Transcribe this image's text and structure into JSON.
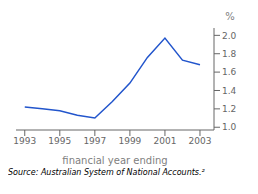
{
  "chart_data": {
    "type": "line",
    "x": [
      1993,
      1994,
      1995,
      1996,
      1997,
      1998,
      1999,
      2000,
      2001,
      2002,
      2003
    ],
    "values": [
      1.22,
      1.2,
      1.18,
      1.13,
      1.1,
      1.28,
      1.48,
      1.76,
      1.97,
      1.73,
      1.68
    ],
    "color": "#2255cc",
    "xlabel": "financial year ending",
    "ylabel": "%",
    "xlim": [
      1992.5,
      2003.8
    ],
    "ylim": [
      0.97,
      2.08
    ],
    "xticks": [
      1993,
      1995,
      1997,
      1999,
      2001,
      2003
    ],
    "yticks": [
      {
        "value": 1.0,
        "label": "1.0"
      },
      1.2,
      1.4,
      1.6,
      1.8,
      {
        "value": 2.0,
        "label": "2.0"
      }
    ],
    "annotations": [
      "Source: Australian System of National Accounts.²"
    ],
    "grid": false
  }
}
